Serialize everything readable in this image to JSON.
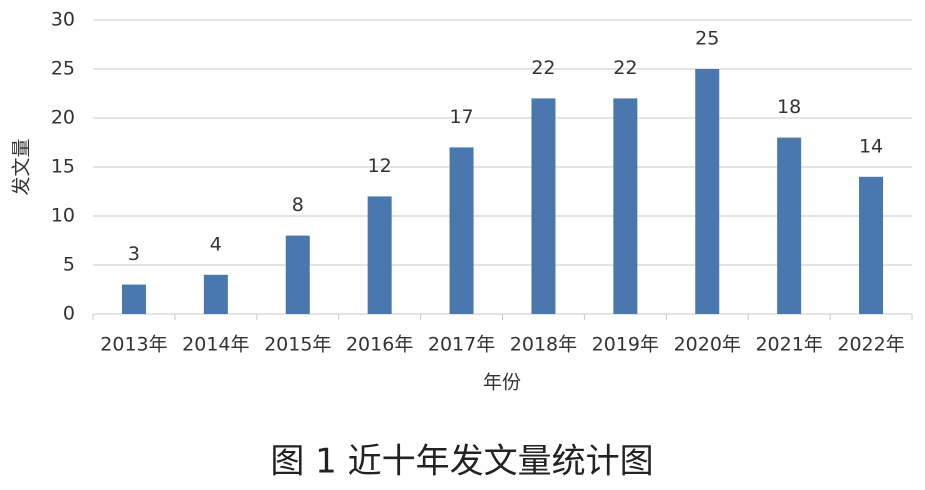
{
  "chart_data": {
    "type": "bar",
    "title": "图 1 近十年发文量统计图",
    "x_label": "年份",
    "y_label": "发文量",
    "categories": [
      "2013年",
      "2014年",
      "2015年",
      "2016年",
      "2017年",
      "2018年",
      "2019年",
      "2020年",
      "2021年",
      "2022年"
    ],
    "values": [
      3,
      4,
      8,
      12,
      17,
      22,
      22,
      25,
      18,
      14
    ],
    "color": "#4a77ad",
    "ylim": [
      0,
      30
    ],
    "yticks": [
      0,
      5,
      10,
      15,
      20,
      25,
      30
    ],
    "grid": true
  }
}
